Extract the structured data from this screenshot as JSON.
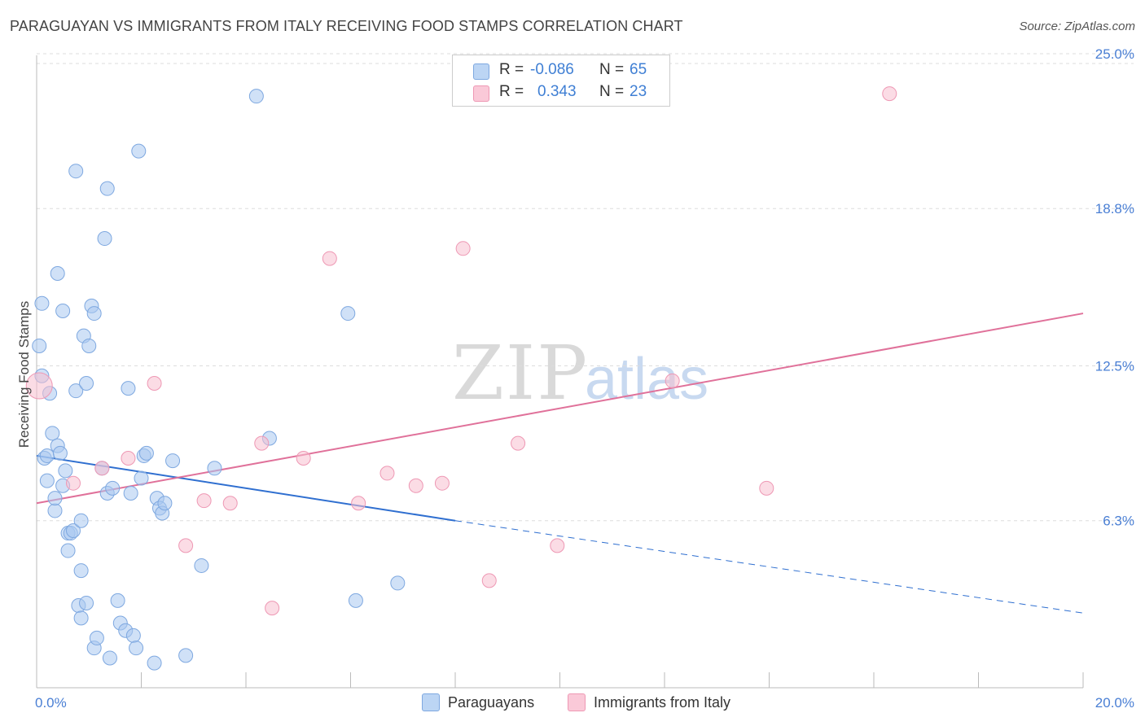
{
  "title": "PARAGUAYAN VS IMMIGRANTS FROM ITALY RECEIVING FOOD STAMPS CORRELATION CHART",
  "source": "Source: ZipAtlas.com",
  "watermark": {
    "zip": "ZIP",
    "atlas": "atlas"
  },
  "legend": {
    "rows": [
      {
        "r_label": "R =",
        "r_value": "-0.086",
        "n_label": "N =",
        "n_value": "65"
      },
      {
        "r_label": "R =",
        "r_value": "0.343",
        "n_label": "N =",
        "n_value": "23"
      }
    ]
  },
  "bottom_legend": {
    "series1": "Paraguayans",
    "series2": "Immigrants from Italy"
  },
  "colors": {
    "blue_fill": "#aac8f0",
    "blue_stroke": "#7ea8e0",
    "blue_line": "#2f6fd0",
    "pink_fill": "#f7bfd0",
    "pink_stroke": "#ee98b4",
    "pink_line": "#e0719a",
    "tick_text": "#4a7fd4",
    "grid": "#dddddd"
  },
  "chart_data": {
    "type": "scatter",
    "title": "PARAGUAYAN VS IMMIGRANTS FROM ITALY RECEIVING FOOD STAMPS CORRELATION CHART",
    "xlabel": "",
    "ylabel": "Receiving Food Stamps",
    "xlim": [
      0,
      20
    ],
    "ylim": [
      0,
      25
    ],
    "x_tick_labels": [
      "0.0%",
      "20.0%"
    ],
    "y_tick_values": [
      6.3,
      12.5,
      18.8,
      25.0
    ],
    "y_tick_labels": [
      "6.3%",
      "12.5%",
      "18.8%",
      "25.0%"
    ],
    "grid": "horizontal dashed",
    "legend_position": "top-center",
    "series": [
      {
        "name": "Paraguayans",
        "color": "#aac8f0",
        "points": [
          [
            0.05,
            13.3
          ],
          [
            0.1,
            15.0
          ],
          [
            0.1,
            12.1
          ],
          [
            0.15,
            8.8
          ],
          [
            0.2,
            8.9
          ],
          [
            0.25,
            11.4
          ],
          [
            0.2,
            7.9
          ],
          [
            0.3,
            9.8
          ],
          [
            0.35,
            6.7
          ],
          [
            0.35,
            7.2
          ],
          [
            0.4,
            16.2
          ],
          [
            0.4,
            9.3
          ],
          [
            0.45,
            9.0
          ],
          [
            0.5,
            7.7
          ],
          [
            0.5,
            14.7
          ],
          [
            0.55,
            8.3
          ],
          [
            0.6,
            5.1
          ],
          [
            0.6,
            5.8
          ],
          [
            0.65,
            5.8
          ],
          [
            0.7,
            5.9
          ],
          [
            0.75,
            20.3
          ],
          [
            0.75,
            11.5
          ],
          [
            0.8,
            2.9
          ],
          [
            0.85,
            2.4
          ],
          [
            0.85,
            4.3
          ],
          [
            0.85,
            6.3
          ],
          [
            0.9,
            13.7
          ],
          [
            0.95,
            3.0
          ],
          [
            0.95,
            11.8
          ],
          [
            1.0,
            13.3
          ],
          [
            1.05,
            14.9
          ],
          [
            1.1,
            14.6
          ],
          [
            1.1,
            1.2
          ],
          [
            1.15,
            1.6
          ],
          [
            1.25,
            8.4
          ],
          [
            1.35,
            19.6
          ],
          [
            1.3,
            17.6
          ],
          [
            1.35,
            7.4
          ],
          [
            1.4,
            0.8
          ],
          [
            1.45,
            7.6
          ],
          [
            1.55,
            3.1
          ],
          [
            1.6,
            2.2
          ],
          [
            1.7,
            1.9
          ],
          [
            1.75,
            11.6
          ],
          [
            1.8,
            7.4
          ],
          [
            1.85,
            1.7
          ],
          [
            1.9,
            1.2
          ],
          [
            1.95,
            21.1
          ],
          [
            2.0,
            8.0
          ],
          [
            2.05,
            8.9
          ],
          [
            2.1,
            9.0
          ],
          [
            2.25,
            0.6
          ],
          [
            2.3,
            7.2
          ],
          [
            2.35,
            6.8
          ],
          [
            2.4,
            6.6
          ],
          [
            2.45,
            7.0
          ],
          [
            2.6,
            8.7
          ],
          [
            2.85,
            0.9
          ],
          [
            3.15,
            4.5
          ],
          [
            3.4,
            8.4
          ],
          [
            4.2,
            23.3
          ],
          [
            4.45,
            9.6
          ],
          [
            5.95,
            14.6
          ],
          [
            6.1,
            3.1
          ],
          [
            6.9,
            3.8
          ]
        ]
      },
      {
        "name": "Immigrants from Italy",
        "color": "#f7bfd0",
        "points": [
          [
            0.05,
            11.7
          ],
          [
            0.7,
            7.8
          ],
          [
            1.25,
            8.4
          ],
          [
            1.75,
            8.8
          ],
          [
            2.25,
            11.8
          ],
          [
            2.85,
            5.3
          ],
          [
            3.2,
            7.1
          ],
          [
            3.7,
            7.0
          ],
          [
            4.3,
            9.4
          ],
          [
            4.5,
            2.8
          ],
          [
            5.1,
            8.8
          ],
          [
            5.6,
            16.8
          ],
          [
            6.15,
            7.0
          ],
          [
            6.7,
            8.2
          ],
          [
            7.25,
            7.7
          ],
          [
            7.75,
            7.8
          ],
          [
            8.15,
            17.2
          ],
          [
            8.65,
            3.9
          ],
          [
            9.2,
            9.4
          ],
          [
            9.95,
            5.3
          ],
          [
            12.15,
            11.9
          ],
          [
            13.95,
            7.6
          ],
          [
            16.3,
            23.4
          ]
        ]
      }
    ],
    "trend_lines": [
      {
        "series": "Paraguayans",
        "x_start": 0,
        "y_start": 8.9,
        "x_solid_end": 8.0,
        "y_solid_end": 6.3,
        "x_end": 20,
        "y_end": 2.6,
        "style": "solid then dashed"
      },
      {
        "series": "Immigrants from Italy",
        "x_start": 0,
        "y_start": 7.0,
        "x_end": 20,
        "y_end": 14.6,
        "style": "solid"
      }
    ]
  }
}
